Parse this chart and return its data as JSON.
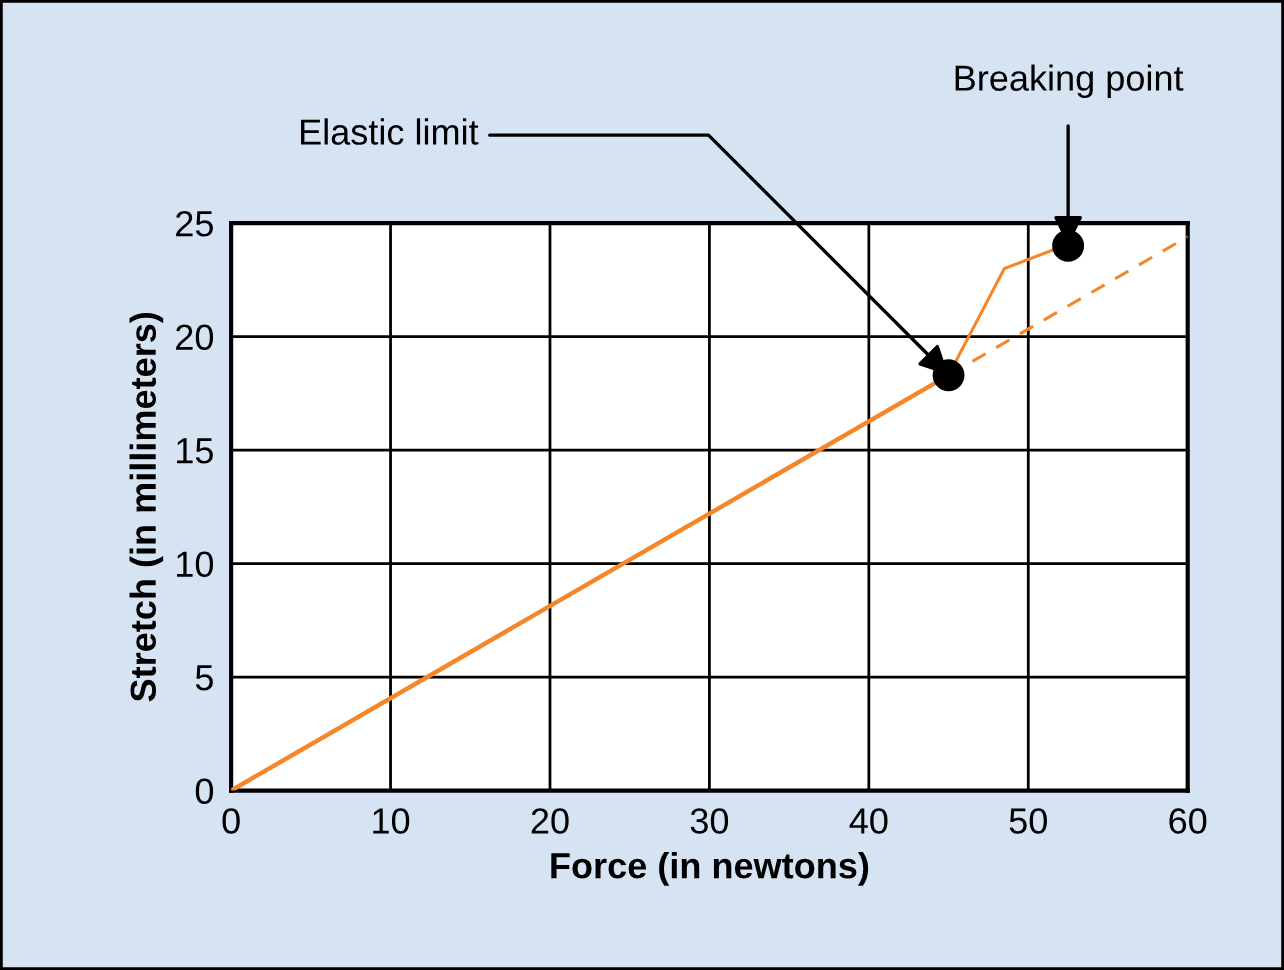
{
  "chart_data": {
    "type": "line",
    "xlabel": "Force (in newtons)",
    "ylabel": "Stretch (in millimeters)",
    "xlim": [
      0,
      60
    ],
    "ylim": [
      0,
      25
    ],
    "xticks": [
      0,
      10,
      20,
      30,
      40,
      50,
      60
    ],
    "yticks": [
      0,
      5,
      10,
      15,
      20,
      25
    ],
    "grid": true,
    "marker": "none",
    "series": [
      {
        "color": "#f5862a",
        "x": [
          0,
          45
        ],
        "values": [
          0,
          18.3
        ],
        "line_style": "solid"
      },
      {
        "color": "#f5862a",
        "x": [
          45,
          48.5,
          51.5
        ],
        "values": [
          18.3,
          23,
          23.8
        ],
        "line_style": "solid"
      },
      {
        "color": "#f5862a",
        "x": [
          45,
          60
        ],
        "values": [
          18.3,
          24.4
        ],
        "line_style": "dashed"
      },
      {
        "type": "scatter",
        "color": "#000000",
        "x": [
          45,
          52.5
        ],
        "values": [
          18.3,
          24
        ],
        "marker": "circle"
      }
    ],
    "annotations": [
      {
        "text": "Elastic limit",
        "x": 45,
        "y": 18.3
      },
      {
        "text": "Breaking point",
        "x": 52.5,
        "y": 24
      }
    ]
  }
}
